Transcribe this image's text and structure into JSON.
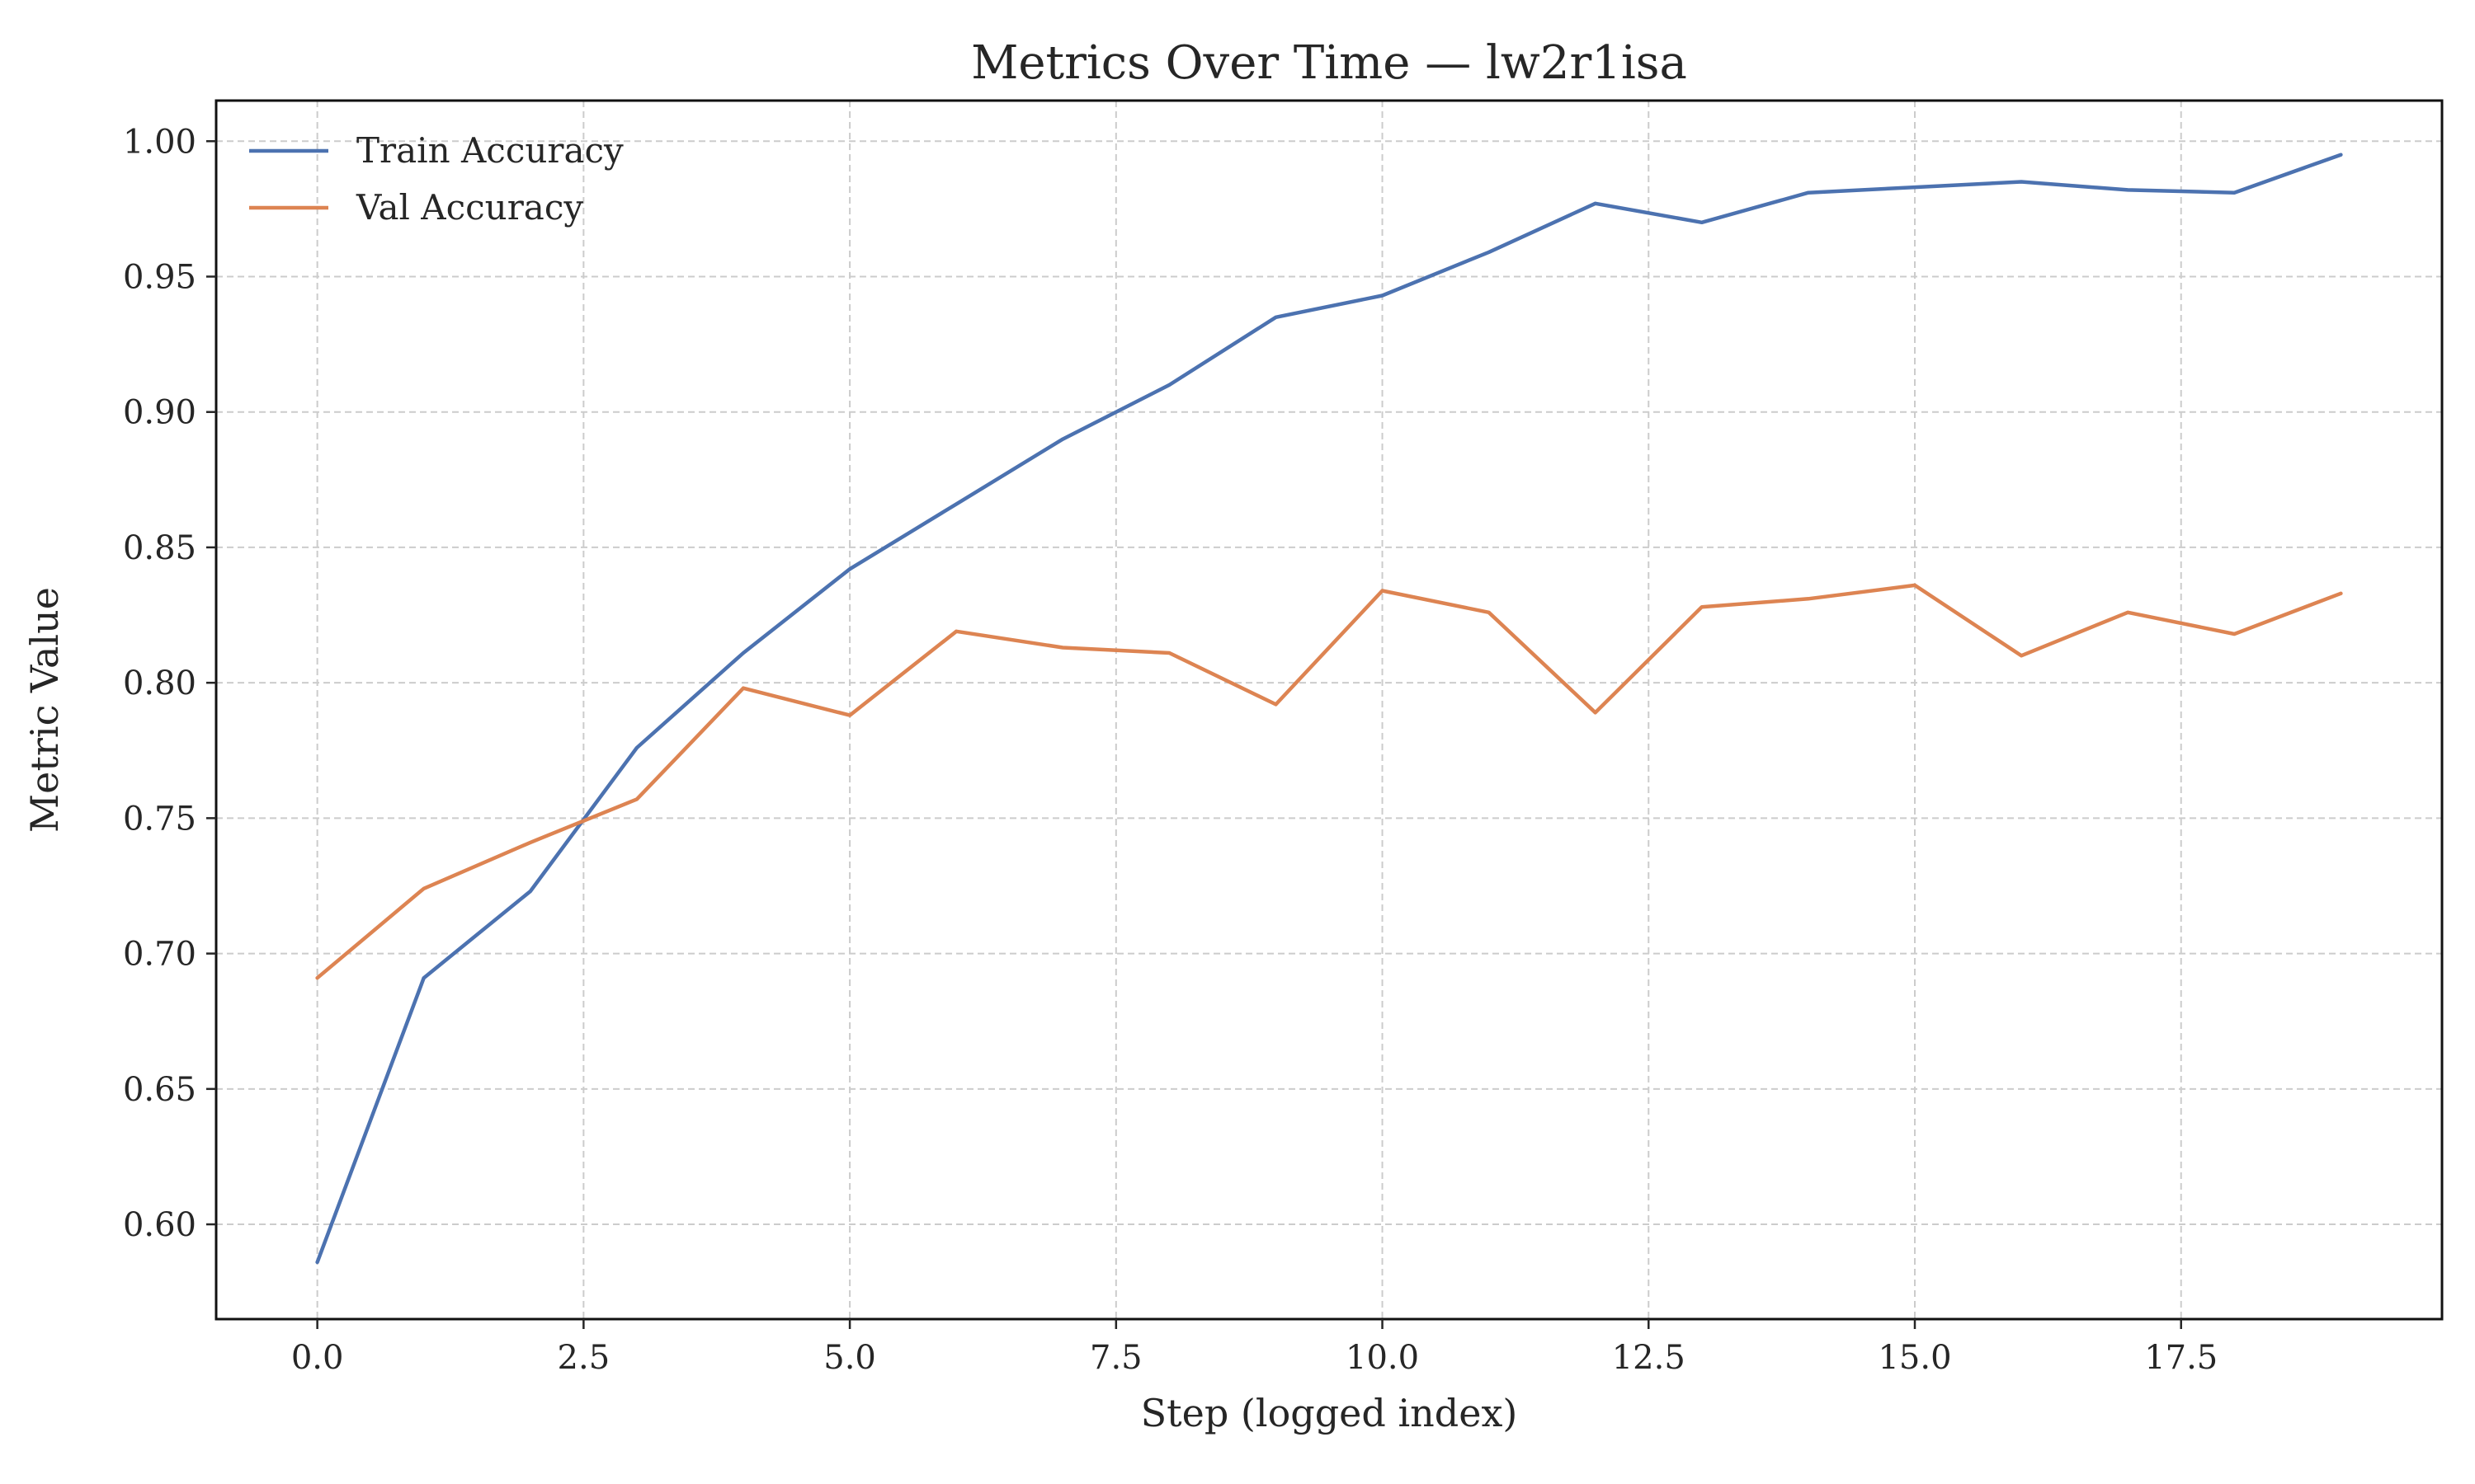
{
  "chart_data": {
    "type": "line",
    "title": "Metrics Over Time — lw2r1isa",
    "xlabel": "Step (logged index)",
    "ylabel": "Metric Value",
    "xlim": [
      -0.95,
      19.95
    ],
    "ylim": [
      0.565,
      1.015
    ],
    "xticks": [
      0.0,
      2.5,
      5.0,
      7.5,
      10.0,
      12.5,
      15.0,
      17.5
    ],
    "xtick_labels": [
      "0.0",
      "2.5",
      "5.0",
      "7.5",
      "10.0",
      "12.5",
      "15.0",
      "17.5"
    ],
    "yticks": [
      0.6,
      0.65,
      0.7,
      0.75,
      0.8,
      0.85,
      0.9,
      0.95,
      1.0
    ],
    "ytick_labels": [
      "0.60",
      "0.65",
      "0.70",
      "0.75",
      "0.80",
      "0.85",
      "0.90",
      "0.95",
      "1.00"
    ],
    "grid": true,
    "legend_position": "top-left",
    "x": [
      0,
      1,
      2,
      3,
      4,
      5,
      6,
      7,
      8,
      9,
      10,
      11,
      12,
      13,
      14,
      15,
      16,
      17,
      18,
      19
    ],
    "series": [
      {
        "name": "Train Accuracy",
        "color": "#4c72b0",
        "values": [
          0.586,
          0.691,
          0.723,
          0.776,
          0.811,
          0.842,
          0.866,
          0.89,
          0.91,
          0.935,
          0.943,
          0.959,
          0.977,
          0.97,
          0.981,
          0.983,
          0.985,
          0.982,
          0.981,
          0.995
        ]
      },
      {
        "name": "Val Accuracy",
        "color": "#dd8452",
        "values": [
          0.691,
          0.724,
          0.741,
          0.757,
          0.798,
          0.788,
          0.819,
          0.813,
          0.811,
          0.792,
          0.834,
          0.826,
          0.789,
          0.828,
          0.831,
          0.836,
          0.81,
          0.826,
          0.818,
          0.833
        ]
      }
    ]
  }
}
